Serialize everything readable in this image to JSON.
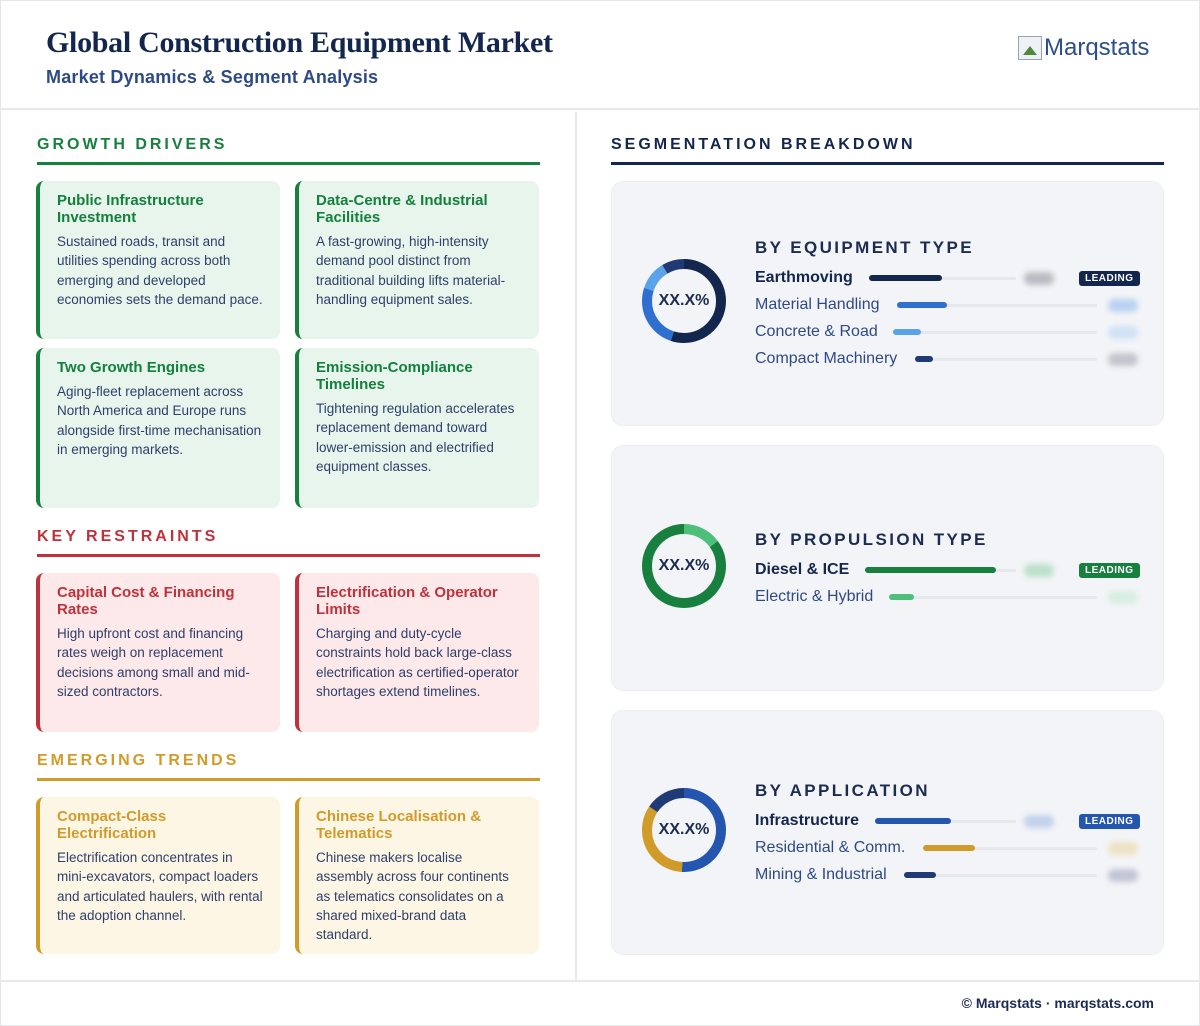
{
  "header": {
    "title": "Global Construction Equipment Market",
    "subtitle": "Market Dynamics & Segment Analysis",
    "logo_alt": "Marqstats"
  },
  "colors": {
    "navy": "#13264d",
    "green": "#18803f",
    "red": "#c0323b",
    "gold": "#d19b2a",
    "blue": "#2f6fd0"
  },
  "drivers": {
    "heading": "GROWTH DRIVERS",
    "cards": [
      {
        "title": "Public Infrastructure Investment",
        "text": "Sustained roads, transit and utilities spending across both emerging and developed economies sets the demand pace."
      },
      {
        "title": "Data-Centre & Industrial Facilities",
        "text": "A fast-growing, high-intensity demand pool distinct from traditional building lifts material-handling equipment sales."
      },
      {
        "title": "Two Growth Engines",
        "text": "Aging-fleet replacement across North America and Europe runs alongside first-time mechanisation in emerging markets."
      },
      {
        "title": "Emission-Compliance Timelines",
        "text": "Tightening regulation accelerates replacement demand toward lower-emission and electrified equipment classes."
      }
    ]
  },
  "restraints": {
    "heading": "KEY RESTRAINTS",
    "cards": [
      {
        "title": "Capital Cost & Financing Rates",
        "text": "High upfront cost and financing rates weigh on replacement decisions among small and mid-sized contractors."
      },
      {
        "title": "Electrification & Operator Limits",
        "text": "Charging and duty-cycle constraints hold back large-class electrification as certified-operator shortages extend timelines."
      }
    ]
  },
  "trends": {
    "heading": "EMERGING TRENDS",
    "cards": [
      {
        "title": "Compact-Class Electrification",
        "text": "Electrification concentrates in mini-excavators, compact loaders and articulated haulers, with rental the adoption channel."
      },
      {
        "title": "Chinese Localisation & Telematics",
        "text": "Chinese makers localise assembly across four continents as telematics consolidates on a shared mixed-brand data standard."
      }
    ]
  },
  "segmentation": {
    "heading": "SEGMENTATION BREAKDOWN",
    "panels": [
      {
        "title": "BY EQUIPMENT TYPE",
        "donut_label": "XX.X%",
        "badge": "LEADING",
        "rows": [
          {
            "label": "Earthmoving",
            "share": 0.55,
            "color": "#13264d"
          },
          {
            "label": "Material Handling",
            "share": 0.25,
            "color": "#2f6fd0"
          },
          {
            "label": "Concrete & Road",
            "share": 0.14,
            "color": "#5aa3ea"
          },
          {
            "label": "Compact Machinery",
            "share": 0.09,
            "color": "#1f3a75"
          }
        ]
      },
      {
        "title": "BY PROPULSION TYPE",
        "donut_label": "XX.X%",
        "badge": "LEADING",
        "rows": [
          {
            "label": "Diesel & ICE",
            "share": 0.85,
            "color": "#18803f"
          },
          {
            "label": "Electric & Hybrid",
            "share": 0.15,
            "color": "#4cbf7a"
          }
        ]
      },
      {
        "title": "BY APPLICATION",
        "donut_label": "XX.X%",
        "badge": "LEADING",
        "rows": [
          {
            "label": "Infrastructure",
            "share": 0.5,
            "color": "#2456b0"
          },
          {
            "label": "Residential & Comm.",
            "share": 0.33,
            "color": "#d19b2a"
          },
          {
            "label": "Mining & Industrial",
            "share": 0.2,
            "color": "#1f3a75"
          }
        ]
      }
    ]
  },
  "footer": {
    "text": "© Marqstats · marqstats.com"
  }
}
